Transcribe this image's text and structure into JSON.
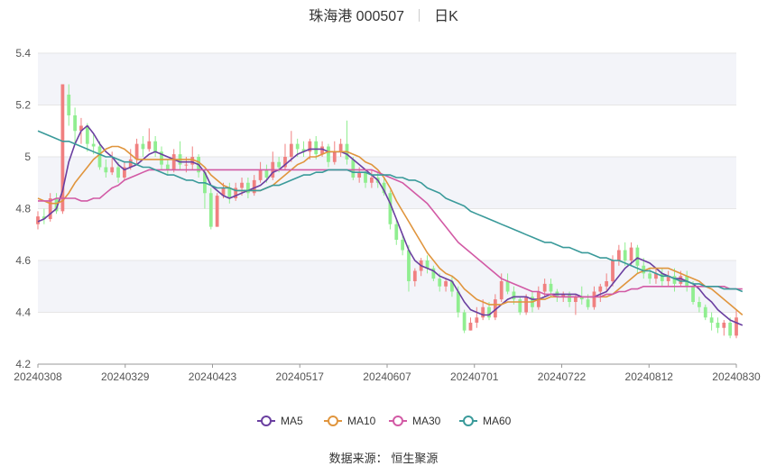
{
  "title": {
    "name": "珠海港 000507",
    "period": "日K"
  },
  "source_label": "数据来源：",
  "source_name": "恒生聚源",
  "chart_data": {
    "type": "candlestick",
    "ylim": [
      4.2,
      5.4
    ],
    "yticks": [
      "4.2",
      "4.4",
      "4.6",
      "4.8",
      "5",
      "5.2",
      "5.4"
    ],
    "xticks": [
      "20240308",
      "20240329",
      "20240423",
      "20240517",
      "20240607",
      "20240701",
      "20240722",
      "20240812",
      "20240830"
    ],
    "colors": {
      "up": "#f08080",
      "down": "#90ee90",
      "MA5": "#6a3fa0",
      "MA10": "#e0953d",
      "MA30": "#d25aa5",
      "MA60": "#3a9a9a"
    },
    "series_names": [
      "MA5",
      "MA10",
      "MA30",
      "MA60"
    ],
    "candles": [
      [
        4.74,
        4.77,
        4.79,
        4.72
      ],
      [
        4.77,
        4.76,
        4.8,
        4.74
      ],
      [
        4.76,
        4.84,
        4.86,
        4.75
      ],
      [
        4.84,
        4.79,
        4.86,
        4.78
      ],
      [
        4.79,
        5.28,
        5.28,
        4.78
      ],
      [
        5.24,
        5.16,
        5.28,
        5.12
      ],
      [
        5.16,
        5.1,
        5.19,
        5.05
      ],
      [
        5.1,
        5.12,
        5.15,
        5.05
      ],
      [
        5.12,
        5.05,
        5.13,
        5.02
      ],
      [
        5.05,
        5.04,
        5.09,
        5.01
      ],
      [
        5.04,
        4.96,
        5.06,
        4.95
      ],
      [
        4.96,
        4.94,
        4.99,
        4.92
      ],
      [
        4.94,
        4.96,
        5.02,
        4.93
      ],
      [
        4.96,
        4.92,
        4.98,
        4.9
      ],
      [
        4.92,
        4.96,
        4.98,
        4.91
      ],
      [
        4.96,
        4.99,
        5.03,
        4.95
      ],
      [
        4.99,
        5.05,
        5.07,
        4.97
      ],
      [
        5.05,
        5.03,
        5.08,
        5.0
      ],
      [
        5.03,
        5.06,
        5.11,
        5.02
      ],
      [
        5.06,
        5.02,
        5.08,
        5.0
      ],
      [
        5.02,
        4.97,
        5.04,
        4.95
      ],
      [
        4.97,
        4.95,
        4.99,
        4.93
      ],
      [
        4.95,
        5.01,
        5.03,
        4.94
      ],
      [
        5.01,
        4.97,
        5.06,
        4.95
      ],
      [
        4.97,
        4.97,
        5.0,
        4.94
      ],
      [
        4.97,
        5.0,
        5.04,
        4.95
      ],
      [
        5.0,
        4.94,
        5.01,
        4.92
      ],
      [
        4.94,
        4.86,
        4.95,
        4.8
      ],
      [
        4.86,
        4.73,
        4.88,
        4.72
      ],
      [
        4.73,
        4.85,
        4.86,
        4.73
      ],
      [
        4.85,
        4.88,
        4.9,
        4.84
      ],
      [
        4.88,
        4.84,
        4.9,
        4.82
      ],
      [
        4.84,
        4.88,
        4.9,
        4.83
      ],
      [
        4.88,
        4.9,
        4.92,
        4.85
      ],
      [
        4.9,
        4.86,
        4.92,
        4.84
      ],
      [
        4.86,
        4.91,
        4.93,
        4.85
      ],
      [
        4.91,
        4.95,
        4.98,
        4.9
      ],
      [
        4.95,
        4.92,
        4.97,
        4.9
      ],
      [
        4.92,
        4.98,
        5.02,
        4.91
      ],
      [
        4.98,
        4.96,
        5.0,
        4.94
      ],
      [
        4.96,
        5.0,
        5.05,
        4.95
      ],
      [
        5.0,
        5.05,
        5.1,
        4.98
      ],
      [
        5.05,
        5.03,
        5.07,
        5.0
      ],
      [
        5.03,
        5.02,
        5.06,
        5.0
      ],
      [
        5.02,
        5.06,
        5.07,
        4.99
      ],
      [
        5.06,
        5.01,
        5.08,
        4.99
      ],
      [
        5.01,
        5.04,
        5.06,
        5.0
      ],
      [
        5.04,
        4.98,
        5.05,
        4.96
      ],
      [
        4.98,
        5.02,
        5.06,
        4.97
      ],
      [
        5.02,
        5.05,
        5.07,
        5.0
      ],
      [
        5.05,
        4.99,
        5.14,
        4.97
      ],
      [
        4.99,
        4.92,
        5.0,
        4.91
      ],
      [
        4.92,
        4.94,
        4.96,
        4.9
      ],
      [
        4.94,
        4.9,
        4.95,
        4.88
      ],
      [
        4.9,
        4.92,
        4.95,
        4.88
      ],
      [
        4.92,
        4.9,
        4.94,
        4.88
      ],
      [
        4.9,
        4.86,
        4.92,
        4.85
      ],
      [
        4.86,
        4.74,
        4.87,
        4.72
      ],
      [
        4.74,
        4.68,
        4.76,
        4.66
      ],
      [
        4.68,
        4.64,
        4.7,
        4.62
      ],
      [
        4.64,
        4.52,
        4.66,
        4.48
      ],
      [
        4.52,
        4.56,
        4.57,
        4.5
      ],
      [
        4.56,
        4.6,
        4.61,
        4.54
      ],
      [
        4.6,
        4.57,
        4.62,
        4.55
      ],
      [
        4.57,
        4.53,
        4.58,
        4.52
      ],
      [
        4.53,
        4.5,
        4.55,
        4.48
      ],
      [
        4.5,
        4.52,
        4.53,
        4.48
      ],
      [
        4.52,
        4.48,
        4.54,
        4.46
      ],
      [
        4.48,
        4.4,
        4.5,
        4.38
      ],
      [
        4.4,
        4.33,
        4.41,
        4.32
      ],
      [
        4.33,
        4.36,
        4.38,
        4.33
      ],
      [
        4.36,
        4.38,
        4.42,
        4.34
      ],
      [
        4.38,
        4.42,
        4.45,
        4.37
      ],
      [
        4.42,
        4.38,
        4.44,
        4.37
      ],
      [
        4.38,
        4.45,
        4.47,
        4.37
      ],
      [
        4.45,
        4.52,
        4.55,
        4.44
      ],
      [
        4.52,
        4.48,
        4.55,
        4.47
      ],
      [
        4.48,
        4.45,
        4.5,
        4.43
      ],
      [
        4.45,
        4.4,
        4.46,
        4.39
      ],
      [
        4.4,
        4.46,
        4.47,
        4.39
      ],
      [
        4.46,
        4.42,
        4.48,
        4.4
      ],
      [
        4.42,
        4.48,
        4.5,
        4.41
      ],
      [
        4.48,
        4.51,
        4.53,
        4.46
      ],
      [
        4.51,
        4.48,
        4.53,
        4.46
      ],
      [
        4.48,
        4.46,
        4.49,
        4.44
      ],
      [
        4.46,
        4.47,
        4.48,
        4.44
      ],
      [
        4.47,
        4.44,
        4.48,
        4.42
      ],
      [
        4.44,
        4.46,
        4.47,
        4.39
      ],
      [
        4.46,
        4.45,
        4.5,
        4.43
      ],
      [
        4.45,
        4.42,
        4.47,
        4.41
      ],
      [
        4.42,
        4.48,
        4.5,
        4.41
      ],
      [
        4.48,
        4.5,
        4.51,
        4.44
      ],
      [
        4.5,
        4.52,
        4.55,
        4.48
      ],
      [
        4.52,
        4.6,
        4.62,
        4.5
      ],
      [
        4.6,
        4.64,
        4.66,
        4.58
      ],
      [
        4.64,
        4.6,
        4.67,
        4.58
      ],
      [
        4.6,
        4.65,
        4.67,
        4.58
      ],
      [
        4.65,
        4.58,
        4.66,
        4.55
      ],
      [
        4.58,
        4.55,
        4.61,
        4.53
      ],
      [
        4.55,
        4.53,
        4.57,
        4.51
      ],
      [
        4.53,
        4.55,
        4.57,
        4.51
      ],
      [
        4.55,
        4.52,
        4.57,
        4.5
      ],
      [
        4.52,
        4.54,
        4.56,
        4.5
      ],
      [
        4.54,
        4.51,
        4.57,
        4.48
      ],
      [
        4.51,
        4.54,
        4.56,
        4.5
      ],
      [
        4.54,
        4.5,
        4.56,
        4.48
      ],
      [
        4.5,
        4.44,
        4.52,
        4.43
      ],
      [
        4.44,
        4.42,
        4.46,
        4.4
      ],
      [
        4.42,
        4.38,
        4.43,
        4.37
      ],
      [
        4.38,
        4.36,
        4.4,
        4.33
      ],
      [
        4.36,
        4.34,
        4.38,
        4.32
      ],
      [
        4.34,
        4.36,
        4.37,
        4.31
      ],
      [
        4.36,
        4.31,
        4.38,
        4.3
      ],
      [
        4.31,
        4.38,
        4.41,
        4.3
      ]
    ],
    "ma_lines": {
      "MA5": [
        4.75,
        4.76,
        4.78,
        4.8,
        4.87,
        4.98,
        5.05,
        5.1,
        5.12,
        5.09,
        5.05,
        5.02,
        5.0,
        4.97,
        4.95,
        4.96,
        4.97,
        4.99,
        5.01,
        5.02,
        5.01,
        5.0,
        4.99,
        4.98,
        4.98,
        4.98,
        4.97,
        4.94,
        4.89,
        4.87,
        4.85,
        4.84,
        4.85,
        4.86,
        4.87,
        4.88,
        4.89,
        4.91,
        4.94,
        4.95,
        4.97,
        4.99,
        5.01,
        5.02,
        5.03,
        5.03,
        5.03,
        5.02,
        5.02,
        5.02,
        5.01,
        4.99,
        4.97,
        4.95,
        4.93,
        4.91,
        4.87,
        4.82,
        4.76,
        4.7,
        4.64,
        4.6,
        4.58,
        4.57,
        4.56,
        4.54,
        4.53,
        4.52,
        4.48,
        4.44,
        4.41,
        4.4,
        4.39,
        4.39,
        4.41,
        4.43,
        4.45,
        4.46,
        4.46,
        4.46,
        4.45,
        4.45,
        4.46,
        4.47,
        4.47,
        4.47,
        4.47,
        4.47,
        4.46,
        4.46,
        4.46,
        4.47,
        4.48,
        4.51,
        4.54,
        4.57,
        4.59,
        4.61,
        4.6,
        4.59,
        4.57,
        4.55,
        4.54,
        4.53,
        4.53,
        4.52,
        4.51,
        4.49,
        4.46,
        4.44,
        4.41,
        4.39,
        4.37,
        4.36,
        4.35
      ],
      "MA10": [
        4.84,
        4.83,
        4.82,
        4.82,
        4.83,
        4.86,
        4.9,
        4.93,
        4.96,
        4.99,
        5.01,
        5.03,
        5.04,
        5.04,
        5.03,
        5.01,
        4.99,
        4.99,
        4.99,
        4.99,
        4.99,
        4.99,
        4.99,
        4.99,
        4.99,
        4.99,
        4.98,
        4.96,
        4.93,
        4.91,
        4.89,
        4.88,
        4.87,
        4.87,
        4.87,
        4.87,
        4.87,
        4.88,
        4.89,
        4.91,
        4.93,
        4.95,
        4.97,
        4.98,
        5.0,
        5.0,
        5.01,
        5.02,
        5.02,
        5.02,
        5.02,
        5.01,
        5.0,
        4.98,
        4.97,
        4.95,
        4.92,
        4.88,
        4.83,
        4.79,
        4.75,
        4.71,
        4.67,
        4.63,
        4.6,
        4.57,
        4.55,
        4.54,
        4.52,
        4.49,
        4.47,
        4.45,
        4.44,
        4.43,
        4.43,
        4.43,
        4.44,
        4.44,
        4.44,
        4.44,
        4.44,
        4.45,
        4.45,
        4.46,
        4.46,
        4.46,
        4.46,
        4.46,
        4.46,
        4.46,
        4.46,
        4.46,
        4.46,
        4.47,
        4.49,
        4.51,
        4.53,
        4.55,
        4.56,
        4.57,
        4.57,
        4.57,
        4.57,
        4.56,
        4.55,
        4.54,
        4.53,
        4.52,
        4.5,
        4.49,
        4.47,
        4.45,
        4.43,
        4.41,
        4.39
      ],
      "MA30": [
        4.83,
        4.83,
        4.83,
        4.84,
        4.84,
        4.84,
        4.84,
        4.83,
        4.83,
        4.84,
        4.84,
        4.86,
        4.88,
        4.89,
        4.91,
        4.92,
        4.93,
        4.94,
        4.95,
        4.95,
        4.95,
        4.95,
        4.95,
        4.95,
        4.95,
        4.95,
        4.95,
        4.95,
        4.95,
        4.95,
        4.95,
        4.95,
        4.95,
        4.95,
        4.95,
        4.95,
        4.95,
        4.95,
        4.95,
        4.95,
        4.95,
        4.95,
        4.95,
        4.95,
        4.95,
        4.95,
        4.95,
        4.95,
        4.95,
        4.95,
        4.95,
        4.95,
        4.95,
        4.95,
        4.95,
        4.94,
        4.93,
        4.92,
        4.91,
        4.9,
        4.88,
        4.86,
        4.84,
        4.82,
        4.79,
        4.76,
        4.73,
        4.7,
        4.67,
        4.65,
        4.63,
        4.61,
        4.59,
        4.57,
        4.55,
        4.53,
        4.52,
        4.51,
        4.5,
        4.49,
        4.48,
        4.48,
        4.47,
        4.47,
        4.46,
        4.46,
        4.46,
        4.46,
        4.46,
        4.46,
        4.46,
        4.46,
        4.47,
        4.47,
        4.48,
        4.48,
        4.49,
        4.49,
        4.5,
        4.5,
        4.5,
        4.5,
        4.5,
        4.5,
        4.5,
        4.5,
        4.5,
        4.5,
        4.5,
        4.5,
        4.5,
        4.5,
        4.49,
        4.49,
        4.49
      ],
      "MA60": [
        5.1,
        5.09,
        5.08,
        5.07,
        5.06,
        5.06,
        5.05,
        5.04,
        5.03,
        5.02,
        5.01,
        5.0,
        5.0,
        4.99,
        4.98,
        4.98,
        4.97,
        4.96,
        4.96,
        4.95,
        4.94,
        4.93,
        4.93,
        4.92,
        4.91,
        4.91,
        4.9,
        4.9,
        4.89,
        4.88,
        4.88,
        4.88,
        4.87,
        4.87,
        4.87,
        4.87,
        4.87,
        4.88,
        4.89,
        4.89,
        4.9,
        4.91,
        4.92,
        4.93,
        4.93,
        4.94,
        4.94,
        4.95,
        4.95,
        4.95,
        4.95,
        4.94,
        4.94,
        4.94,
        4.93,
        4.93,
        4.93,
        4.93,
        4.92,
        4.92,
        4.91,
        4.91,
        4.9,
        4.88,
        4.87,
        4.86,
        4.84,
        4.83,
        4.82,
        4.81,
        4.79,
        4.78,
        4.77,
        4.76,
        4.75,
        4.74,
        4.73,
        4.72,
        4.71,
        4.7,
        4.69,
        4.68,
        4.67,
        4.67,
        4.66,
        4.65,
        4.65,
        4.64,
        4.63,
        4.63,
        4.62,
        4.61,
        4.61,
        4.6,
        4.6,
        4.59,
        4.58,
        4.57,
        4.56,
        4.56,
        4.55,
        4.54,
        4.54,
        4.53,
        4.52,
        4.52,
        4.51,
        4.51,
        4.5,
        4.5,
        4.5,
        4.49,
        4.49,
        4.49,
        4.48
      ]
    }
  }
}
